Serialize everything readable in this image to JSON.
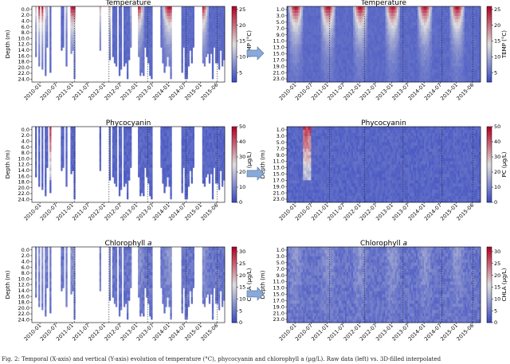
{
  "caption": "Fig. 2: Temporal (X-axis) and vertical (Y-axis) evolution of temperature (°C), phycocyanin and chlorophyll a (µg/L). Raw data (left) vs. 3D-filled interpolated",
  "colormap": {
    "low": "#3b4cc0",
    "mid": "#dddddd",
    "high": "#b40426"
  },
  "arrow_color": "#8aa8d8",
  "chart_data": [
    {
      "type": "heatmap",
      "title": "Temperature",
      "ylabel": "Depth (m)",
      "colorbar_label": "TEMP (°C)",
      "x_ticks": [
        "2010-01",
        "2010-07",
        "2011-01",
        "2011-07",
        "2012-01",
        "2012-07",
        "2013-01",
        "2013-07",
        "2014-01",
        "2014-07",
        "2015-01",
        "2015-06"
      ],
      "y_ticks": [
        "0.0",
        "2.0",
        "4.0",
        "6.0",
        "8.0",
        "10.0",
        "12.0",
        "14.0",
        "16.0",
        "18.0",
        "20.0",
        "22.0",
        "24.0"
      ],
      "colorbar_ticks": [
        "5",
        "10",
        "15",
        "20",
        "25"
      ],
      "vmin": 2,
      "vmax": 26,
      "variant": "temp",
      "sparse": true
    },
    {
      "type": "heatmap",
      "title": "Temperature",
      "ylabel": "",
      "colorbar_label": "TEMP (°C)",
      "x_ticks": [
        "2010-01",
        "2010-07",
        "2011-01",
        "2011-07",
        "2012-01",
        "2012-07",
        "2013-01",
        "2013-07",
        "2014-01",
        "2014-07",
        "2015-01",
        "2015-06"
      ],
      "y_ticks": [
        "1.0",
        "3.0",
        "5.0",
        "7.0",
        "9.0",
        "11.0",
        "13.0",
        "15.0",
        "17.0",
        "19.0",
        "21.0",
        "23.0"
      ],
      "colorbar_ticks": [
        "5",
        "10",
        "15",
        "20",
        "25"
      ],
      "vmin": 2,
      "vmax": 26,
      "variant": "temp",
      "sparse": false
    },
    {
      "type": "heatmap",
      "title": "Phycocyanin",
      "ylabel": "Depth (m)",
      "colorbar_label": "PC (µg/L)",
      "x_ticks": [
        "2010-01",
        "2010-07",
        "2011-01",
        "2011-07",
        "2012-01",
        "2012-07",
        "2013-01",
        "2013-07",
        "2014-01",
        "2014-07",
        "2015-01",
        "2015-06"
      ],
      "y_ticks": [
        "0.0",
        "2.0",
        "4.0",
        "6.0",
        "8.0",
        "10.0",
        "12.0",
        "14.0",
        "16.0",
        "18.0",
        "20.0",
        "22.0",
        "24.0"
      ],
      "colorbar_ticks": [
        "0",
        "10",
        "20",
        "30",
        "40",
        "50"
      ],
      "vmin": 0,
      "vmax": 50,
      "variant": "pc",
      "sparse": true
    },
    {
      "type": "heatmap",
      "title": "Phycocyanin",
      "ylabel": "Depth (m)",
      "colorbar_label": "PC (µg/L)",
      "x_ticks": [
        "2010-01",
        "2010-07",
        "2011-01",
        "2011-07",
        "2012-01",
        "2012-07",
        "2013-01",
        "2013-07",
        "2014-01",
        "2014-07",
        "2015-01",
        "2015-06"
      ],
      "y_ticks": [
        "1.0",
        "3.0",
        "5.0",
        "7.0",
        "9.0",
        "11.0",
        "13.0",
        "15.0",
        "17.0",
        "19.0",
        "21.0",
        "23.0"
      ],
      "colorbar_ticks": [
        "0",
        "10",
        "20",
        "30",
        "40",
        "50"
      ],
      "vmin": 0,
      "vmax": 50,
      "variant": "pc",
      "sparse": false
    },
    {
      "type": "heatmap",
      "title": "Chlorophyll a",
      "ylabel": "Depth (m)",
      "colorbar_label": "CHLA (µg/L)",
      "x_ticks": [
        "2010-01",
        "2010-07",
        "2011-01",
        "2011-07",
        "2012-01",
        "2012-07",
        "2013-01",
        "2013-07",
        "2014-01",
        "2014-07",
        "2015-01",
        "2015-06"
      ],
      "y_ticks": [
        "0.0",
        "2.0",
        "4.0",
        "6.0",
        "8.0",
        "10.0",
        "12.0",
        "14.0",
        "16.0",
        "18.0",
        "20.0",
        "22.0",
        "24.0"
      ],
      "colorbar_ticks": [
        "0",
        "5",
        "10",
        "15",
        "20",
        "25",
        "30"
      ],
      "vmin": 0,
      "vmax": 32,
      "variant": "chla",
      "sparse": true
    },
    {
      "type": "heatmap",
      "title": "Chlorophyll a",
      "ylabel": "Depth (m)",
      "colorbar_label": "CHLA (µg/L)",
      "x_ticks": [
        "2010-01",
        "2010-07",
        "2011-01",
        "2011-07",
        "2012-01",
        "2012-07",
        "2013-01",
        "2013-07",
        "2014-01",
        "2014-07",
        "2015-01",
        "2015-06"
      ],
      "y_ticks": [
        "1.0",
        "3.0",
        "5.0",
        "7.0",
        "9.0",
        "11.0",
        "13.0",
        "15.0",
        "17.0",
        "19.0",
        "21.0",
        "23.0"
      ],
      "colorbar_ticks": [
        "0",
        "5",
        "10",
        "15",
        "20",
        "25",
        "30"
      ],
      "vmin": 0,
      "vmax": 32,
      "variant": "chla",
      "sparse": false
    }
  ]
}
